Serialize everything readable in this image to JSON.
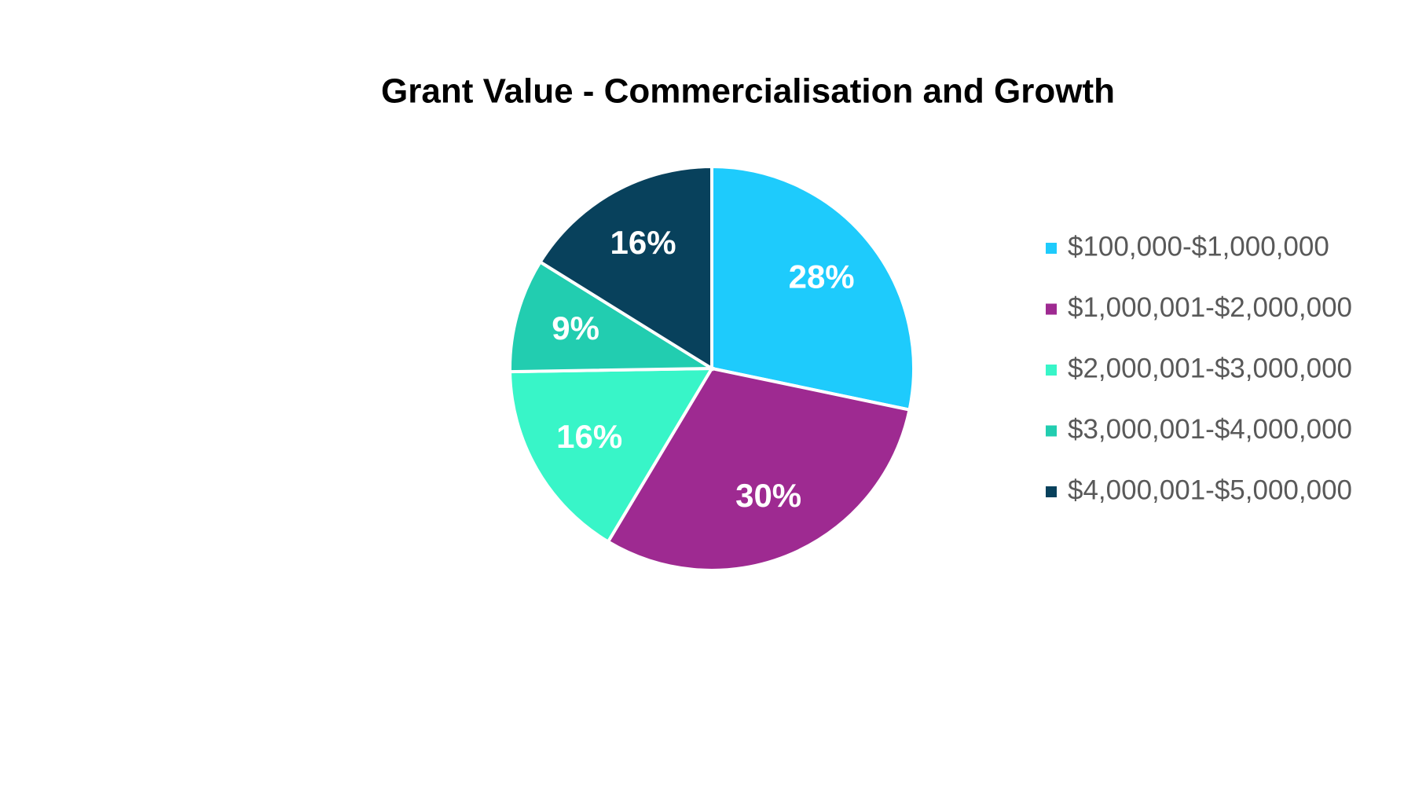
{
  "chart_data": {
    "type": "pie",
    "title": "Grant Value - Commercialisation and Growth",
    "categories": [
      "$100,000-$1,000,000",
      "$1,000,001-$2,000,000",
      "$2,000,001-$3,000,000",
      "$3,000,001-$4,000,000",
      "$4,000,001-$5,000,000"
    ],
    "values": [
      28,
      30,
      16,
      9,
      16
    ],
    "value_labels": [
      "28%",
      "30%",
      "16%",
      "9%",
      "16%"
    ],
    "colors": [
      "#1ecbfc",
      "#9e2a91",
      "#38f5c8",
      "#22cdb0",
      "#08415c"
    ],
    "legend": "right"
  }
}
